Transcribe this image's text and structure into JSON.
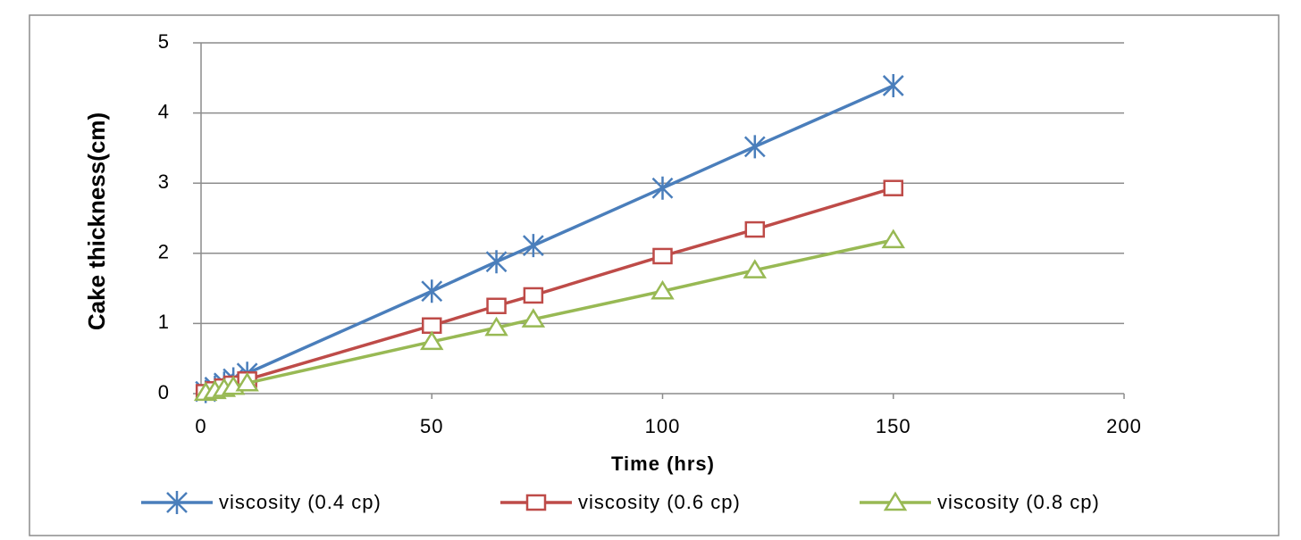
{
  "chart_data": {
    "type": "line",
    "x_label": "Time (hrs)",
    "y_label": "Cake thickness(cm)",
    "xlim": [
      0,
      200
    ],
    "xticks": [
      0,
      50,
      100,
      150,
      200
    ],
    "ylim": [
      0,
      5
    ],
    "yticks": [
      0,
      1,
      2,
      3,
      4,
      5
    ],
    "grid": true,
    "legend": "bottom",
    "series": [
      {
        "name": "viscosity (0.4 cp)",
        "color": "#4a7ebb",
        "marker": "star",
        "x": [
          1,
          3,
          5,
          7,
          10,
          50,
          64,
          72,
          100,
          120,
          150
        ],
        "values": [
          0.03,
          0.09,
          0.15,
          0.21,
          0.29,
          1.46,
          1.88,
          2.11,
          2.93,
          3.52,
          4.39
        ]
      },
      {
        "name": "viscosity (0.6 cp)",
        "color": "#be4b48",
        "marker": "square",
        "x": [
          1,
          3,
          5,
          7,
          10,
          50,
          64,
          72,
          100,
          120,
          150
        ],
        "values": [
          0.02,
          0.06,
          0.1,
          0.14,
          0.2,
          0.97,
          1.25,
          1.4,
          1.96,
          2.34,
          2.93
        ]
      },
      {
        "name": "viscosity (0.8 cp)",
        "color": "#98b954",
        "marker": "triangle",
        "x": [
          1,
          3,
          5,
          7,
          10,
          50,
          64,
          72,
          100,
          120,
          150
        ],
        "values": [
          0.015,
          0.04,
          0.07,
          0.1,
          0.15,
          0.74,
          0.94,
          1.06,
          1.46,
          1.76,
          2.19
        ]
      }
    ]
  }
}
